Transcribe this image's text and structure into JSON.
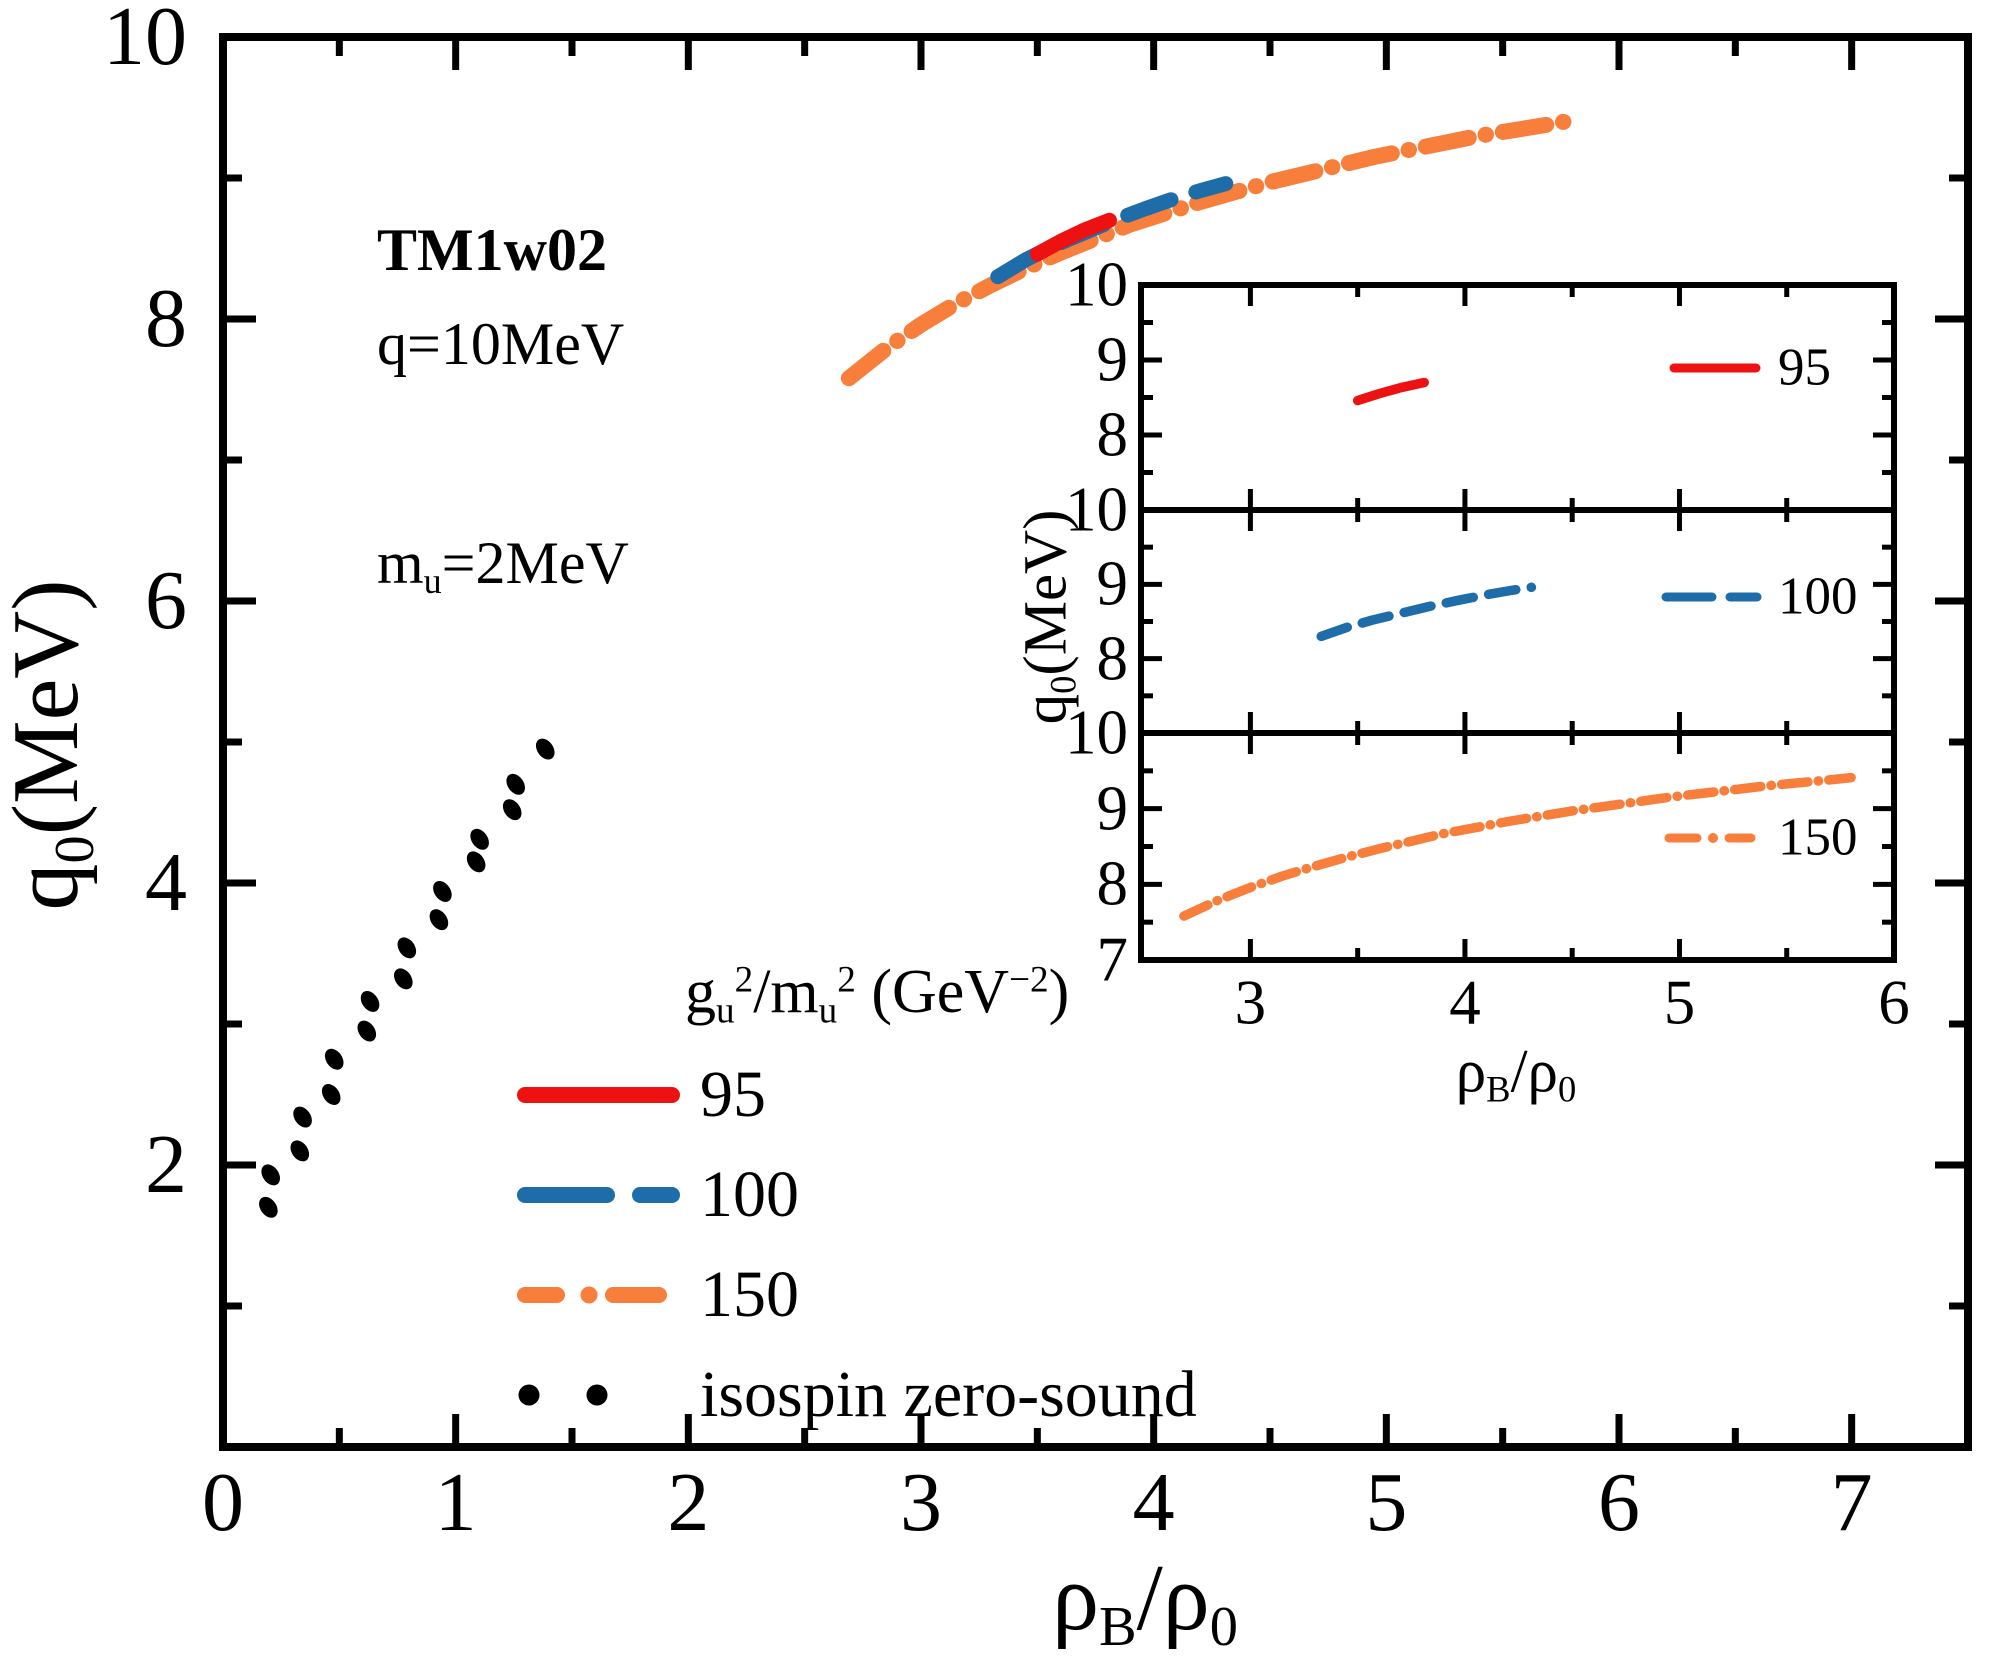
{
  "figure": {
    "annotations": {
      "model": "TM1w02",
      "q_line": "q=10MeV",
      "mu_parts": [
        [
          "m",
          ""
        ],
        [
          "u",
          "sub"
        ],
        [
          "=2MeV",
          ""
        ]
      ]
    },
    "legend": {
      "title_parts": [
        [
          "g",
          ""
        ],
        [
          "u",
          "sub"
        ],
        [
          "2",
          "sup"
        ],
        [
          "/m",
          ""
        ],
        [
          "u",
          "sub"
        ],
        [
          "2",
          "sup"
        ],
        [
          " (GeV",
          ""
        ],
        [
          "−2",
          "sup"
        ],
        [
          ")",
          ""
        ]
      ],
      "items": [
        {
          "label": "95"
        },
        {
          "label": "100"
        },
        {
          "label": "150"
        },
        {
          "label": "isospin zero-sound"
        }
      ]
    }
  },
  "chart_data": {
    "type": "line",
    "title": "",
    "main": {
      "xlabel_parts": [
        [
          "ρ",
          ""
        ],
        [
          "B",
          "sub"
        ],
        [
          "/ρ",
          ""
        ],
        [
          "0",
          "sub"
        ]
      ],
      "ylabel_parts": [
        [
          "q",
          ""
        ],
        [
          "0",
          "sub"
        ],
        [
          "(MeV)",
          ""
        ]
      ],
      "xlabel_text": "rhoB/rho0",
      "ylabel_text": "q0(MeV)",
      "xlim": [
        0,
        7.5
      ],
      "ylim": [
        0,
        10
      ],
      "xticks": [
        0,
        1,
        2,
        3,
        4,
        5,
        6,
        7
      ],
      "yticks": [
        2,
        4,
        6,
        8,
        10
      ],
      "xminor": [
        0.5,
        1.5,
        2.5,
        3.5,
        4.5,
        5.5,
        6.5
      ],
      "yminor": [
        1,
        3,
        5,
        7,
        9
      ],
      "grid": false,
      "legend_position": "lower-center-left"
    },
    "series": [
      {
        "name": "95",
        "color": "#ee1111",
        "style": "solid",
        "points": [
          [
            3.5,
            8.46
          ],
          [
            3.6,
            8.55
          ],
          [
            3.7,
            8.63
          ],
          [
            3.81,
            8.7
          ]
        ]
      },
      {
        "name": "100",
        "color": "#1e6ca8",
        "style": "dashed",
        "points": [
          [
            3.33,
            8.3
          ],
          [
            3.45,
            8.42
          ],
          [
            3.57,
            8.52
          ],
          [
            3.7,
            8.61
          ],
          [
            3.83,
            8.7
          ],
          [
            3.96,
            8.78
          ],
          [
            4.1,
            8.86
          ],
          [
            4.2,
            8.91
          ],
          [
            4.31,
            8.96
          ]
        ]
      },
      {
        "name": "150",
        "color": "#f87e3c",
        "style": "dashdot",
        "points": [
          [
            2.69,
            7.58
          ],
          [
            2.85,
            7.79
          ],
          [
            3.0,
            7.96
          ],
          [
            3.15,
            8.11
          ],
          [
            3.3,
            8.24
          ],
          [
            3.45,
            8.36
          ],
          [
            3.6,
            8.47
          ],
          [
            3.75,
            8.57
          ],
          [
            3.9,
            8.67
          ],
          [
            4.05,
            8.75
          ],
          [
            4.2,
            8.83
          ],
          [
            4.35,
            8.9
          ],
          [
            4.5,
            8.97
          ],
          [
            4.65,
            9.03
          ],
          [
            4.8,
            9.09
          ],
          [
            4.95,
            9.15
          ],
          [
            5.1,
            9.2
          ],
          [
            5.25,
            9.25
          ],
          [
            5.4,
            9.3
          ],
          [
            5.55,
            9.34
          ],
          [
            5.7,
            9.38
          ],
          [
            5.8,
            9.41
          ]
        ]
      },
      {
        "name": "isospin zero-sound",
        "color": "#000000",
        "style": "dots",
        "points": [
          [
            0.195,
            1.7
          ],
          [
            0.205,
            1.93
          ],
          [
            0.33,
            2.1
          ],
          [
            0.342,
            2.34
          ],
          [
            0.465,
            2.5
          ],
          [
            0.478,
            2.75
          ],
          [
            0.618,
            2.95
          ],
          [
            0.632,
            3.16
          ],
          [
            0.775,
            3.32
          ],
          [
            0.79,
            3.54
          ],
          [
            0.928,
            3.74
          ],
          [
            0.943,
            3.94
          ],
          [
            1.088,
            4.15
          ],
          [
            1.103,
            4.31
          ],
          [
            1.243,
            4.52
          ],
          [
            1.258,
            4.7
          ],
          [
            1.385,
            4.95
          ]
        ]
      }
    ],
    "inset": {
      "xlim": [
        2.49,
        6
      ],
      "ylim_per_panel": [
        7,
        10
      ],
      "xticks": [
        3,
        4,
        5,
        6
      ],
      "xminor": [
        3.5,
        4.5,
        5.5
      ],
      "yticks_major": [
        8,
        9
      ],
      "yminor": [
        7.5,
        8.5,
        9.5
      ],
      "panel_ytick_labels": [
        [
          10,
          9,
          8
        ],
        [
          10,
          9,
          8
        ],
        [
          10,
          9,
          8,
          7
        ]
      ],
      "xlabel_parts": [
        [
          "ρ",
          ""
        ],
        [
          "B",
          "sub"
        ],
        [
          "/ρ",
          ""
        ],
        [
          "0",
          "sub"
        ]
      ],
      "ylabel_parts": [
        [
          "q",
          ""
        ],
        [
          "0",
          "sub"
        ],
        [
          "(MeV)",
          ""
        ]
      ],
      "panels": [
        {
          "series": "95",
          "label": "95"
        },
        {
          "series": "100",
          "label": "100"
        },
        {
          "series": "150",
          "label": "150"
        }
      ]
    }
  }
}
